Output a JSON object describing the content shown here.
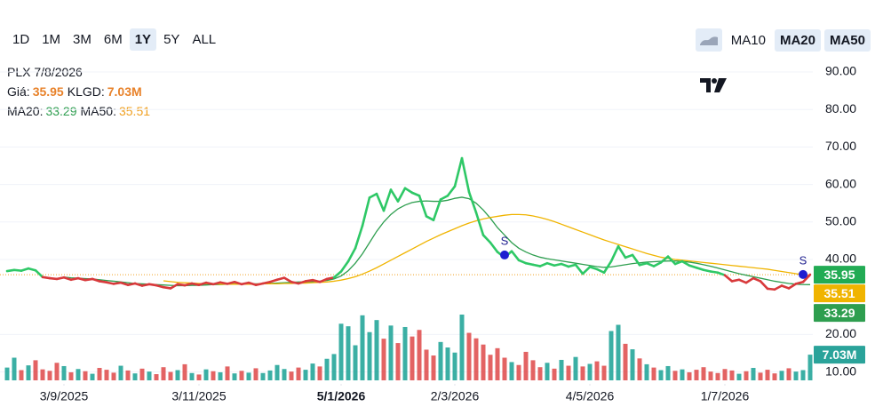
{
  "toolbar": {
    "ranges": [
      "1D",
      "1M",
      "3M",
      "6M",
      "1Y",
      "5Y",
      "ALL"
    ],
    "selected_index": 4,
    "indicators": [
      {
        "label": "MA10",
        "active": false
      },
      {
        "label": "MA20",
        "active": true
      },
      {
        "label": "MA50",
        "active": true
      }
    ]
  },
  "info": {
    "symbol": "PLX 7/8/2026",
    "price_label": "Giá:",
    "volume_label": "KLGD:",
    "ma20_label": "MA20:",
    "ma50_label": "MA50:"
  },
  "chart_data": {
    "type": "line",
    "xticks": [
      {
        "value": 8,
        "label": "3/9/2025"
      },
      {
        "value": 27,
        "label": "3/11/2025"
      },
      {
        "value": 47,
        "label": "5/1/2026",
        "bold": true
      },
      {
        "value": 63,
        "label": "2/3/2026"
      },
      {
        "value": 82,
        "label": "4/5/2026"
      },
      {
        "value": 101,
        "label": "1/7/2026"
      }
    ],
    "xlim": [
      0,
      113
    ],
    "ylim": [
      8,
      90
    ],
    "yticks": [
      {
        "value": 10,
        "label": "10.00"
      },
      {
        "value": 20,
        "label": "20.00"
      },
      {
        "value": 40,
        "label": "40.00"
      },
      {
        "value": 50,
        "label": "50.00"
      },
      {
        "value": 60,
        "label": "60.00"
      },
      {
        "value": 70,
        "label": "70.00"
      },
      {
        "value": 80,
        "label": "80.00"
      },
      {
        "value": 90,
        "label": "90.00"
      }
    ],
    "grid": true,
    "series": [
      {
        "name": "Giá",
        "up_color": "#2ec866",
        "down_color": "#d8393b",
        "last_label": "35.95",
        "label_color": "#22ab54",
        "values": [
          36.9,
          37.2,
          37.0,
          37.6,
          37.1,
          35.3,
          35.0,
          34.8,
          35.2,
          34.6,
          35.0,
          34.5,
          34.8,
          34.2,
          33.9,
          33.5,
          33.8,
          33.2,
          33.6,
          33.0,
          33.4,
          33.1,
          32.6,
          32.3,
          33.4,
          33.1,
          33.6,
          33.2,
          33.8,
          33.4,
          33.9,
          33.5,
          34.0,
          33.4,
          33.8,
          33.2,
          33.6,
          34.0,
          34.6,
          35.1,
          34.0,
          33.6,
          34.2,
          34.5,
          34.0,
          34.8,
          35.2,
          36.8,
          39.5,
          43.0,
          49.0,
          56.5,
          57.5,
          53.0,
          58.6,
          55.5,
          59.0,
          57.8,
          57.0,
          51.5,
          50.5,
          56.0,
          57.0,
          59.5,
          67.0,
          58.0,
          52.5,
          46.5,
          44.5,
          42.0,
          40.5,
          42.2,
          39.8,
          39.0,
          38.6,
          38.2,
          39.0,
          38.4,
          38.8,
          38.1,
          38.6,
          36.2,
          38.0,
          37.4,
          36.5,
          39.5,
          43.5,
          40.5,
          41.2,
          38.5,
          39.0,
          38.2,
          39.2,
          40.8,
          38.8,
          39.5,
          38.4,
          37.8,
          37.2,
          36.8,
          36.5,
          35.8,
          34.2,
          34.6,
          33.8,
          35.0,
          34.2,
          32.2,
          32.0,
          33.0,
          32.3,
          33.5,
          34.0,
          35.95
        ]
      },
      {
        "name": "MA20",
        "color": "#2e9e4f",
        "last_label": "33.29",
        "values": [
          null,
          null,
          null,
          null,
          null,
          null,
          null,
          null,
          35.3,
          35.1,
          35.0,
          34.9,
          34.8,
          34.6,
          34.4,
          34.2,
          34.0,
          33.8,
          33.6,
          33.5,
          33.4,
          33.3,
          33.2,
          33.1,
          33.0,
          33.0,
          33.1,
          33.1,
          33.2,
          33.3,
          33.3,
          33.4,
          33.5,
          33.5,
          33.5,
          33.5,
          33.5,
          33.6,
          33.7,
          33.8,
          33.9,
          34.0,
          34.0,
          34.1,
          34.2,
          34.4,
          34.8,
          35.6,
          37.0,
          39.0,
          41.5,
          44.5,
          47.5,
          50.0,
          52.0,
          53.5,
          54.5,
          55.2,
          55.5,
          55.6,
          55.5,
          55.5,
          55.8,
          56.3,
          56.6,
          56.2,
          55.0,
          53.2,
          51.0,
          48.5,
          46.5,
          44.5,
          43.0,
          42.0,
          41.2,
          40.6,
          40.2,
          39.9,
          39.6,
          39.3,
          39.0,
          38.7,
          38.4,
          38.1,
          37.9,
          38.0,
          38.3,
          38.6,
          38.9,
          39.1,
          39.3,
          39.4,
          39.5,
          39.6,
          39.6,
          39.5,
          39.3,
          39.0,
          38.6,
          38.2,
          37.7,
          37.2,
          36.7,
          36.2,
          35.8,
          35.4,
          35.0,
          34.6,
          34.2,
          33.9,
          33.6,
          33.4,
          33.3,
          33.29
        ]
      },
      {
        "name": "MA50",
        "color": "#f0b400",
        "last_label": "35.51",
        "values": [
          null,
          null,
          null,
          null,
          null,
          null,
          null,
          null,
          null,
          null,
          null,
          null,
          null,
          null,
          null,
          null,
          null,
          null,
          null,
          null,
          null,
          null,
          34.3,
          34.1,
          33.9,
          33.8,
          33.7,
          33.6,
          33.5,
          33.5,
          33.4,
          33.4,
          33.4,
          33.4,
          33.4,
          33.4,
          33.5,
          33.5,
          33.5,
          33.6,
          33.6,
          33.7,
          33.7,
          33.8,
          33.9,
          34.0,
          34.2,
          34.5,
          34.9,
          35.4,
          36.1,
          36.9,
          37.8,
          38.8,
          39.8,
          40.8,
          41.8,
          42.8,
          43.8,
          44.8,
          45.7,
          46.6,
          47.4,
          48.2,
          49.0,
          49.7,
          50.3,
          50.8,
          51.2,
          51.5,
          51.8,
          52.0,
          52.0,
          51.9,
          51.6,
          51.2,
          50.7,
          50.1,
          49.4,
          48.7,
          48.0,
          47.3,
          46.6,
          45.9,
          45.2,
          44.6,
          44.0,
          43.4,
          42.8,
          42.2,
          41.6,
          41.1,
          40.6,
          40.3,
          40.0,
          39.8,
          39.6,
          39.4,
          39.2,
          39.0,
          38.8,
          38.6,
          38.4,
          38.2,
          38.0,
          37.8,
          37.6,
          37.4,
          37.1,
          36.8,
          36.5,
          36.2,
          35.9,
          35.51
        ]
      }
    ],
    "volume": {
      "name": "KLGD",
      "vlim": [
        0,
        18
      ],
      "up_color": "#26a69a",
      "down_color": "#e05252",
      "last_label": "7.03M",
      "label_color": "#2aa39a",
      "values": [
        3.5,
        6.2,
        2.8,
        4.1,
        5.5,
        3.0,
        2.6,
        4.8,
        3.9,
        2.2,
        3.1,
        2.5,
        1.8,
        3.4,
        2.9,
        2.1,
        4.0,
        2.7,
        1.9,
        3.2,
        2.4,
        1.7,
        3.6,
        2.3,
        2.8,
        4.4,
        2.0,
        1.6,
        3.0,
        2.5,
        2.2,
        3.8,
        1.9,
        2.6,
        2.1,
        3.3,
        2.0,
        2.7,
        4.2,
        3.1,
        2.4,
        3.5,
        2.9,
        4.6,
        3.8,
        5.9,
        7.2,
        15.5,
        14.8,
        9.6,
        17.8,
        13.2,
        16.5,
        11.4,
        15.0,
        10.2,
        14.6,
        12.0,
        13.8,
        8.4,
        6.8,
        10.5,
        9.0,
        7.6,
        18.0,
        13.0,
        11.5,
        9.8,
        7.0,
        8.8,
        6.2,
        5.0,
        4.2,
        7.8,
        5.5,
        3.6,
        4.8,
        3.2,
        5.6,
        4.0,
        6.4,
        3.8,
        4.5,
        5.2,
        4.0,
        13.5,
        15.2,
        10.0,
        8.5,
        6.0,
        4.4,
        3.5,
        2.8,
        3.9,
        2.6,
        3.0,
        2.2,
        2.9,
        3.6,
        2.4,
        2.0,
        3.1,
        2.7,
        1.8,
        2.5,
        3.4,
        2.1,
        2.9,
        1.9,
        2.6,
        3.3,
        2.4,
        2.8,
        7.03
      ]
    },
    "annotations": [
      {
        "index": 70,
        "value": 41.2,
        "label": "S"
      },
      {
        "index": 112,
        "value": 36.0,
        "label": "S"
      }
    ],
    "annotation_color": "#1f1fd1",
    "baseline_color": "#f0a020"
  }
}
